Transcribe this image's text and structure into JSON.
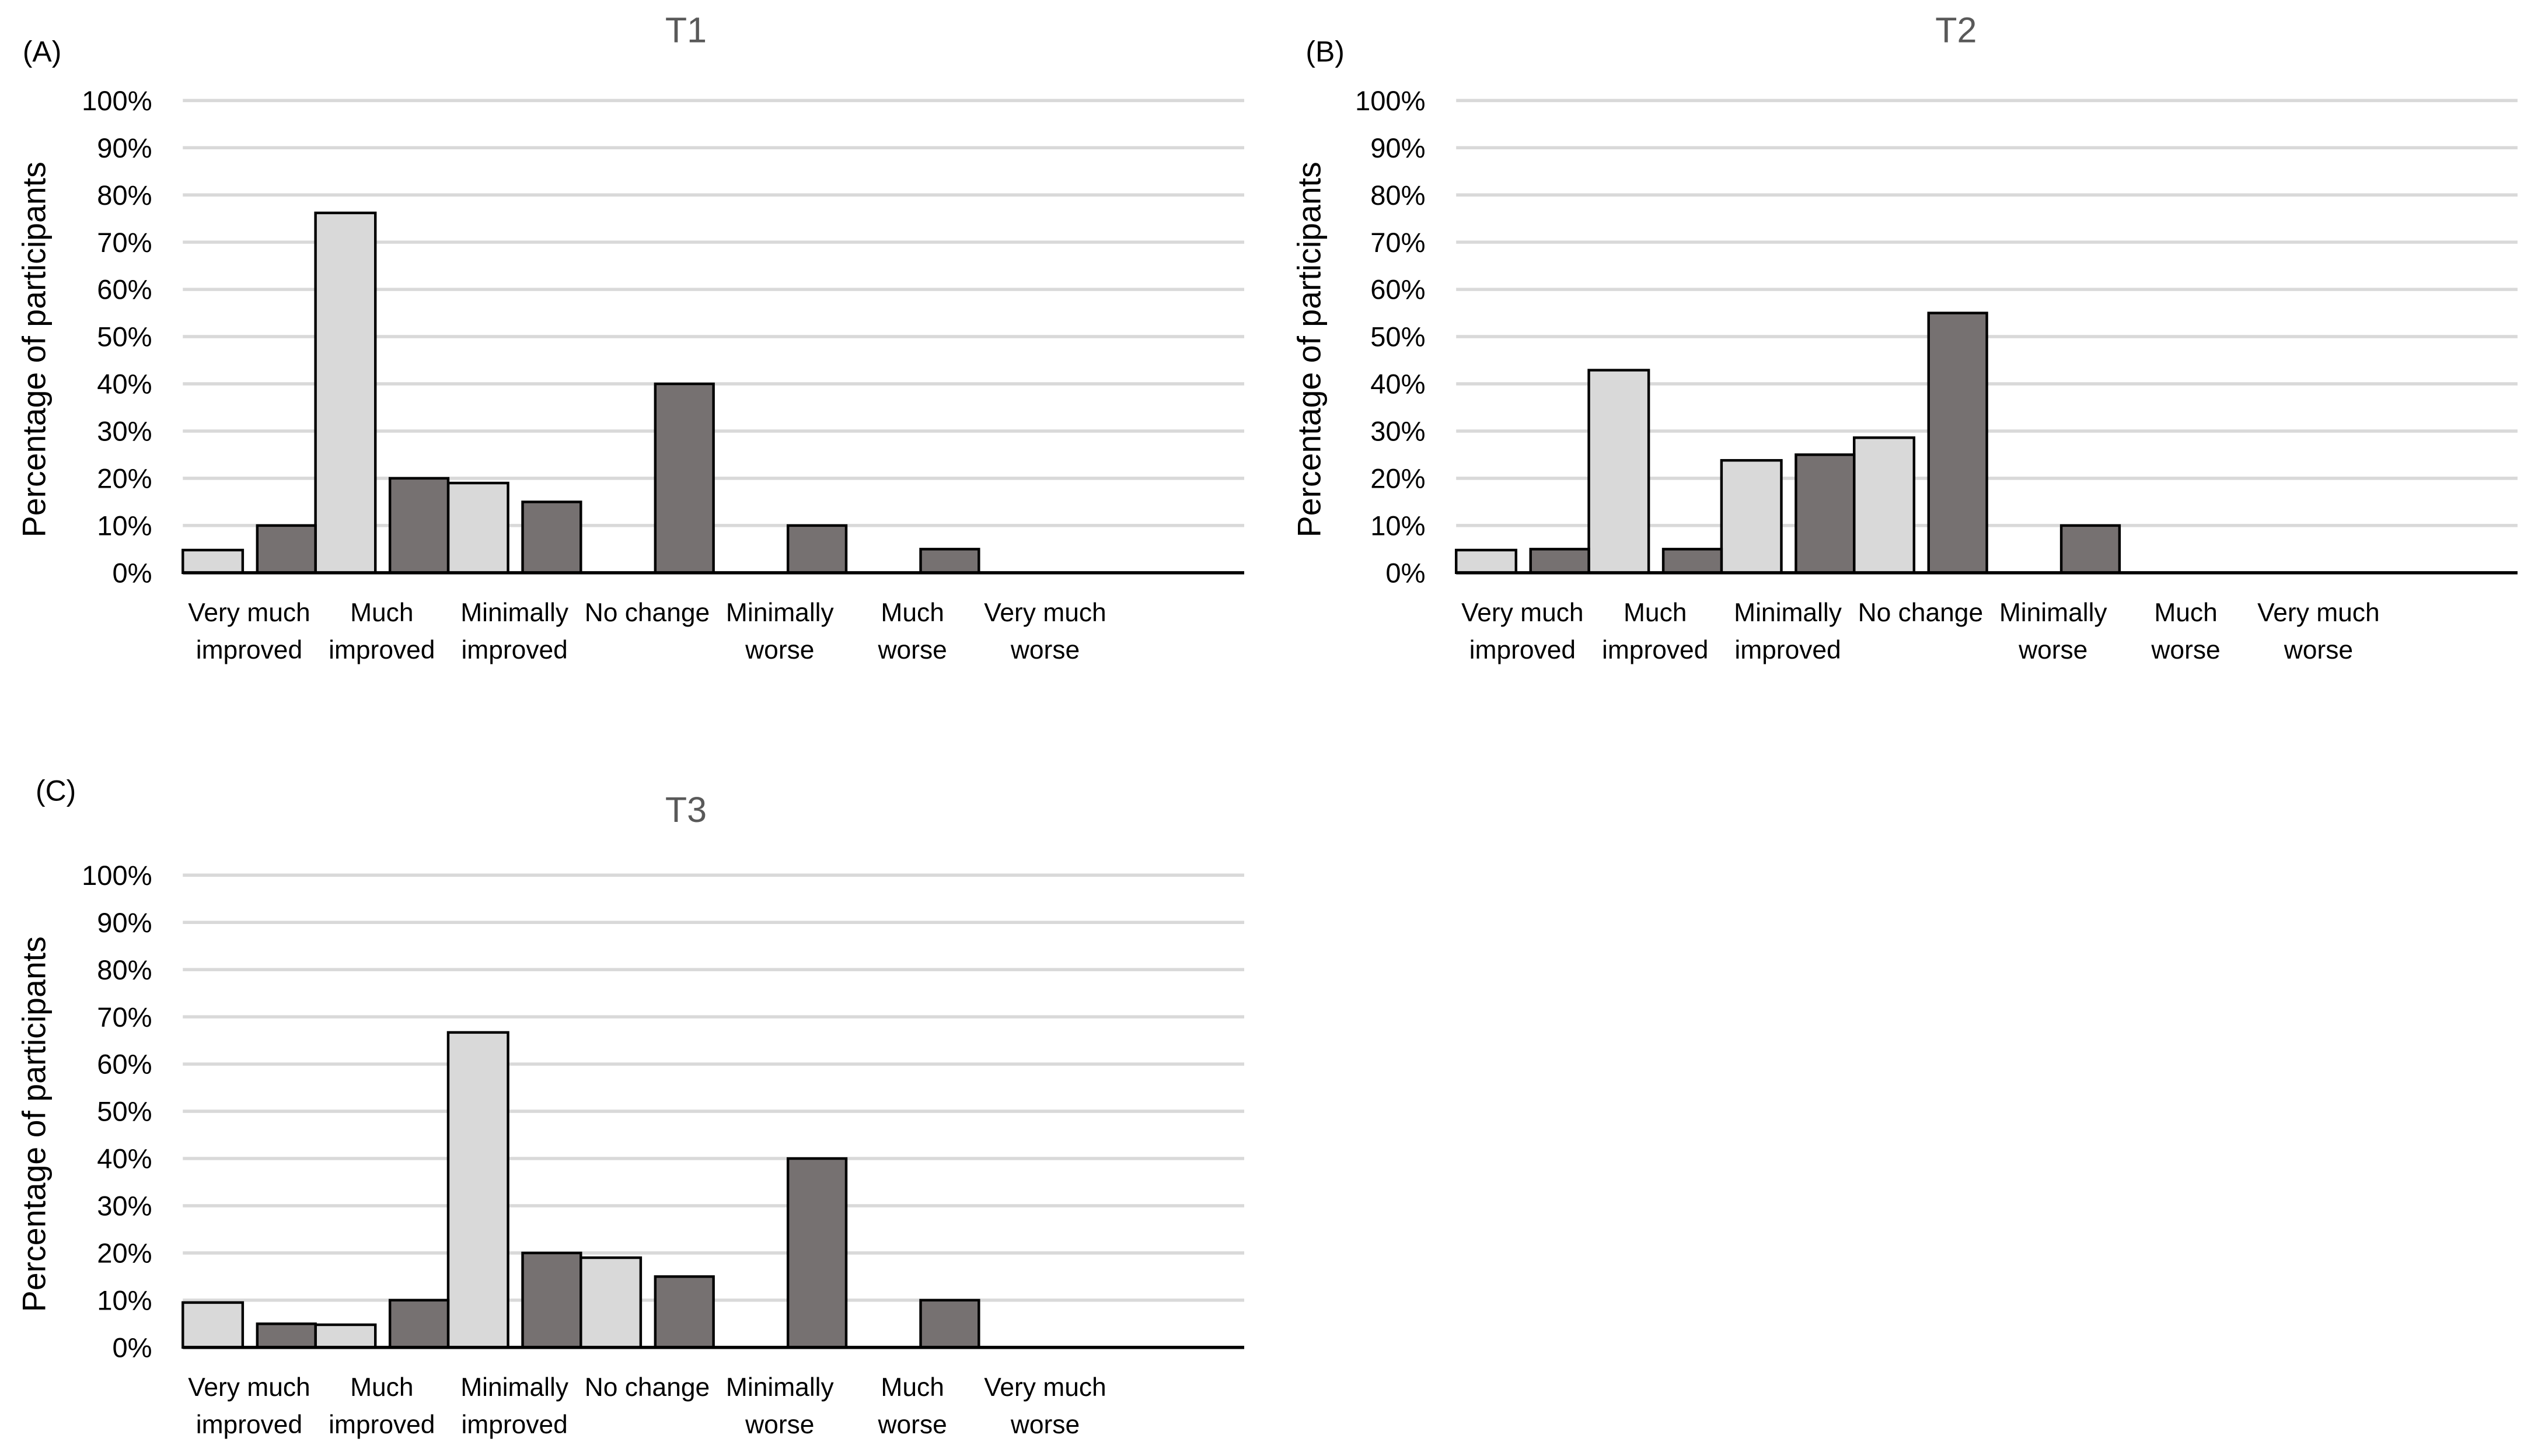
{
  "colors": {
    "series_light": "#d9d9d9",
    "series_dark": "#767171",
    "grid": "#d9d9d9",
    "axis": "#000000",
    "title": "#595959"
  },
  "chart_data": [
    {
      "type": "bar",
      "panel_label": "(A)",
      "title": "T1",
      "ylabel": "Percentage of participants",
      "ylim": [
        0,
        100
      ],
      "yticks": [
        "0%",
        "10%",
        "20%",
        "30%",
        "40%",
        "50%",
        "60%",
        "70%",
        "80%",
        "90%",
        "100%"
      ],
      "grid": true,
      "categories": [
        [
          "Very much",
          "improved"
        ],
        [
          "Much",
          "improved"
        ],
        [
          "Minimally",
          "improved"
        ],
        [
          "No change",
          ""
        ],
        [
          "Minimally",
          "worse"
        ],
        [
          "Much",
          "worse"
        ],
        [
          "Very much",
          "worse"
        ]
      ],
      "series": [
        {
          "color": "#d9d9d9",
          "values": [
            4.8,
            76.2,
            19.0,
            0,
            0,
            0,
            0
          ]
        },
        {
          "color": "#767171",
          "values": [
            10,
            20,
            15,
            40,
            10,
            5,
            0
          ]
        }
      ]
    },
    {
      "type": "bar",
      "panel_label": "(B)",
      "title": "T2",
      "ylabel": "Percentage of participants",
      "ylim": [
        0,
        100
      ],
      "yticks": [
        "0%",
        "10%",
        "20%",
        "30%",
        "40%",
        "50%",
        "60%",
        "70%",
        "80%",
        "90%",
        "100%"
      ],
      "grid": true,
      "categories": [
        [
          "Very much",
          "improved"
        ],
        [
          "Much",
          "improved"
        ],
        [
          "Minimally",
          "improved"
        ],
        [
          "No change",
          ""
        ],
        [
          "Minimally",
          "worse"
        ],
        [
          "Much",
          "worse"
        ],
        [
          "Very much",
          "worse"
        ]
      ],
      "series": [
        {
          "color": "#d9d9d9",
          "values": [
            4.8,
            42.9,
            23.8,
            28.6,
            0,
            0,
            0
          ]
        },
        {
          "color": "#767171",
          "values": [
            5,
            5,
            25,
            55,
            10,
            0,
            0
          ]
        }
      ]
    },
    {
      "type": "bar",
      "panel_label": "(C)",
      "title": "T3",
      "ylabel": "Percentage of participants",
      "ylim": [
        0,
        100
      ],
      "yticks": [
        "0%",
        "10%",
        "20%",
        "30%",
        "40%",
        "50%",
        "60%",
        "70%",
        "80%",
        "90%",
        "100%"
      ],
      "grid": true,
      "categories": [
        [
          "Very much",
          "improved"
        ],
        [
          "Much",
          "improved"
        ],
        [
          "Minimally",
          "improved"
        ],
        [
          "No change",
          ""
        ],
        [
          "Minimally",
          "worse"
        ],
        [
          "Much",
          "worse"
        ],
        [
          "Very much",
          "worse"
        ]
      ],
      "series": [
        {
          "color": "#d9d9d9",
          "values": [
            9.5,
            4.8,
            66.7,
            19.0,
            0,
            0,
            0
          ]
        },
        {
          "color": "#767171",
          "values": [
            5,
            10,
            20,
            15,
            40,
            10,
            0
          ]
        }
      ]
    }
  ]
}
